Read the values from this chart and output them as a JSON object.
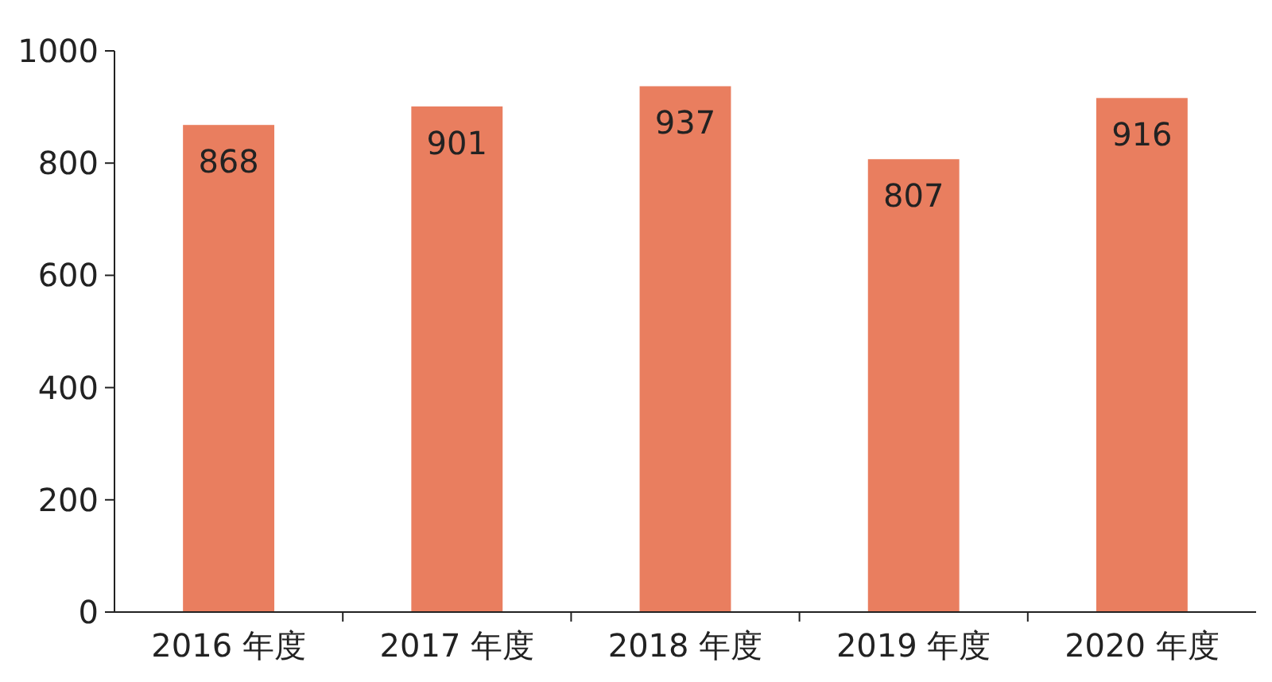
{
  "chart_data": {
    "type": "bar",
    "categories": [
      "2016 年度",
      "2017 年度",
      "2018 年度",
      "2019 年度",
      "2020 年度"
    ],
    "values": [
      868,
      901,
      937,
      807,
      916
    ],
    "color": "#e97e5f",
    "ylim": [
      0,
      1000
    ],
    "yticks": [
      0,
      200,
      400,
      600,
      800,
      1000
    ],
    "data_labels": true,
    "grid": false
  }
}
